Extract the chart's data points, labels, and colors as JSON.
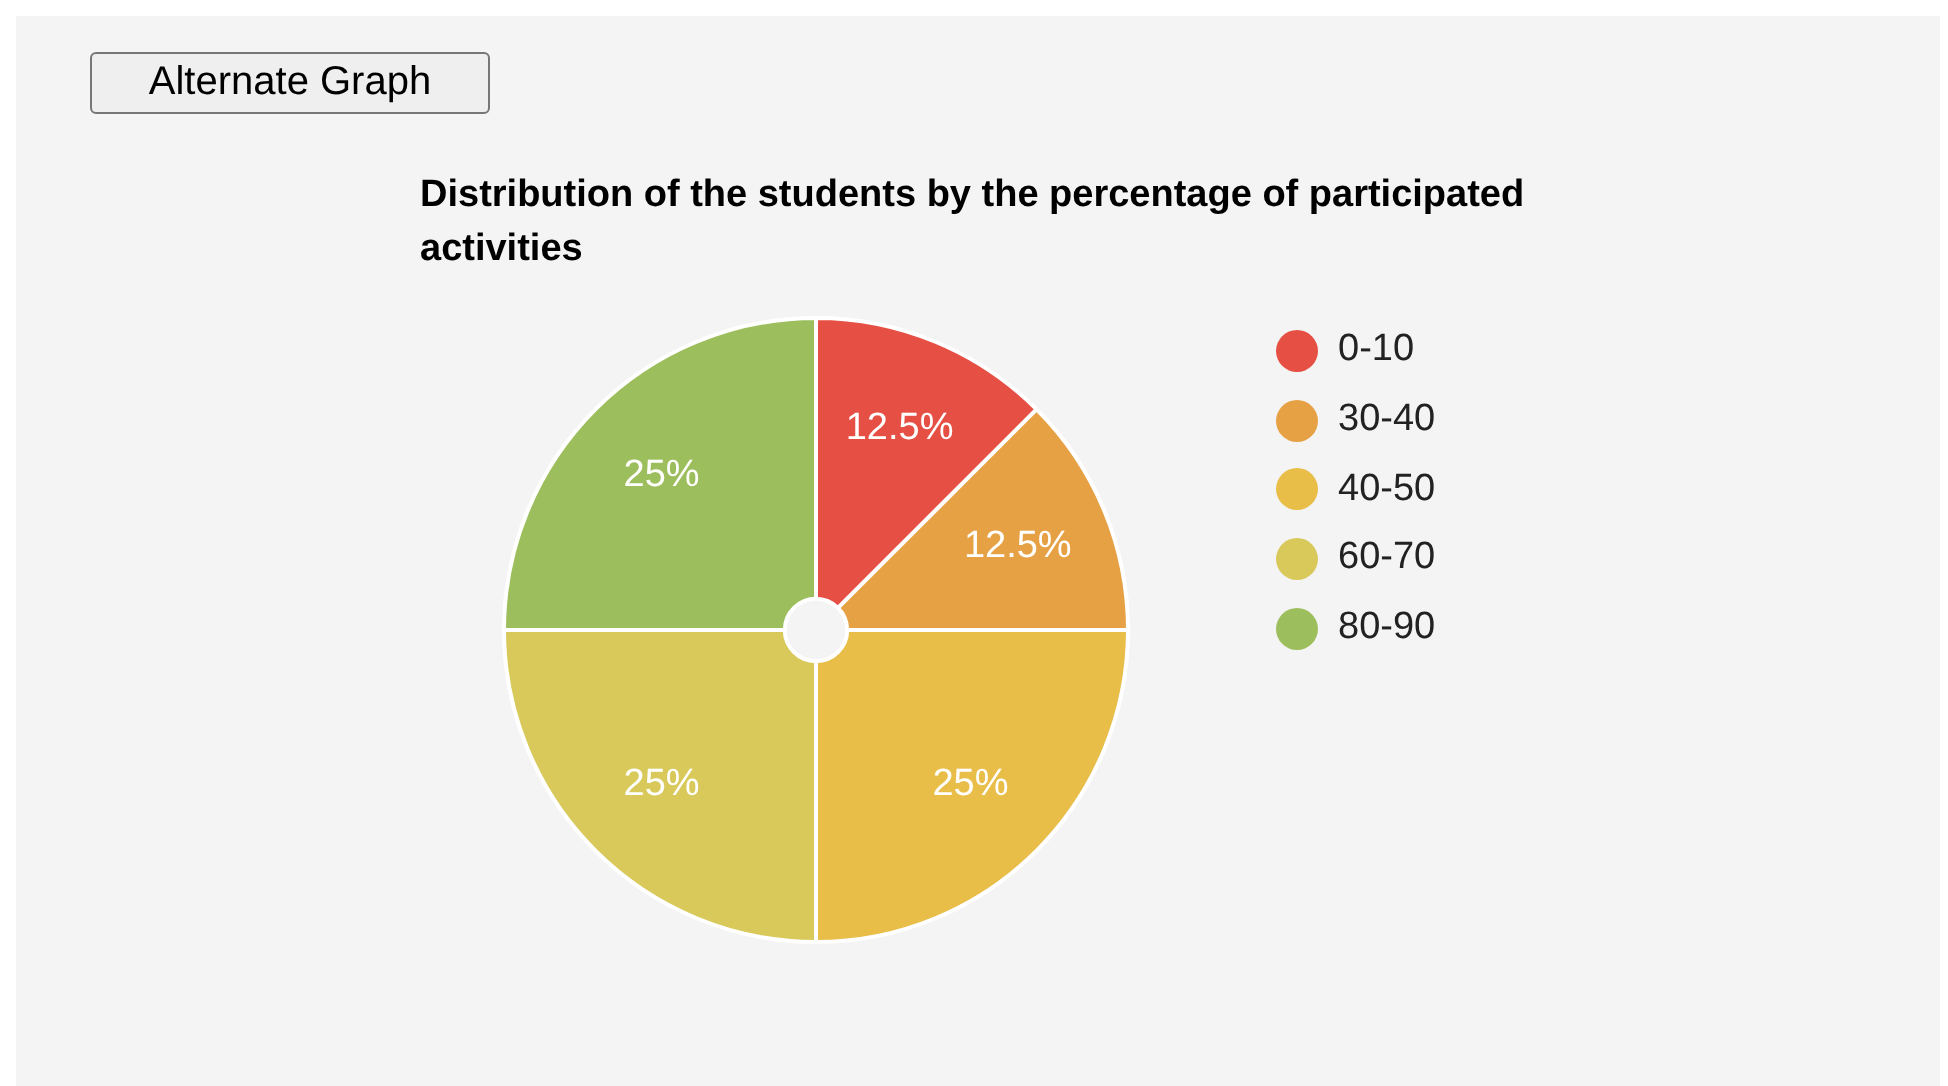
{
  "chart_data": {
    "type": "pie",
    "title": "Distribution of the students by the percentage of participated activities",
    "categories": [
      "0-10",
      "30-40",
      "40-50",
      "60-70",
      "80-90"
    ],
    "values": [
      12.5,
      12.5,
      25,
      25,
      25
    ],
    "colors": [
      "#e54f44",
      "#e6a145",
      "#e8bd48",
      "#d8c95a",
      "#9dbe5c"
    ],
    "value_labels": [
      "12.5%",
      "12.5%",
      "25%",
      "25%",
      "25%"
    ],
    "legend": "right",
    "annotations": [
      "Alternate Graph"
    ]
  }
}
